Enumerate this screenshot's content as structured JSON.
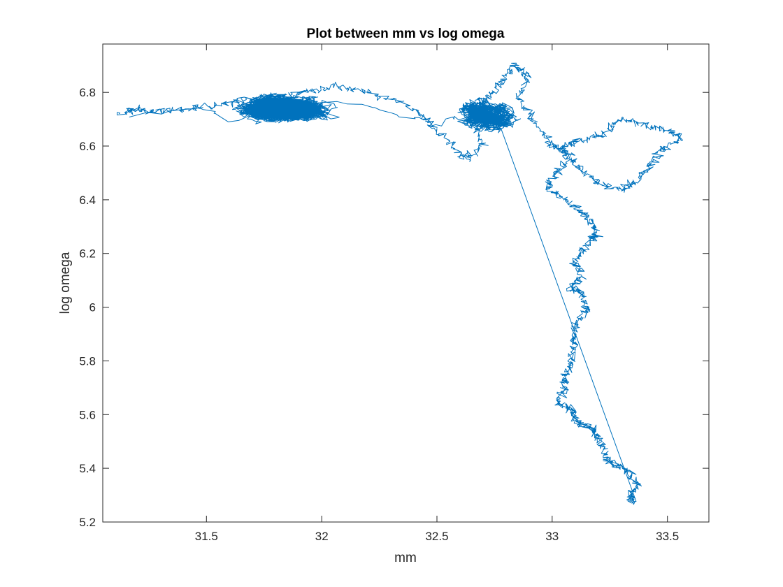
{
  "chart_data": {
    "type": "line",
    "title": "Plot between mm vs log omega",
    "xlabel": "mm",
    "ylabel": "log omega",
    "xlim": [
      31.05,
      33.68
    ],
    "ylim": [
      5.2,
      6.98
    ],
    "xticks": [
      31.5,
      32,
      32.5,
      33,
      33.5
    ],
    "xtick_labels": [
      "31.5",
      "32",
      "32.5",
      "33",
      "33.5"
    ],
    "yticks": [
      5.2,
      5.4,
      5.6,
      5.8,
      6.0,
      6.2,
      6.4,
      6.6,
      6.8
    ],
    "ytick_labels": [
      "5.2",
      "5.4",
      "5.6",
      "5.8",
      "6",
      "6.2",
      "6.4",
      "6.6",
      "6.8"
    ],
    "grid": false,
    "legend": "none",
    "series": [
      {
        "color": "#0072bd",
        "path": [
          [
            33.35,
            5.27
          ],
          [
            33.34,
            5.3
          ],
          [
            33.37,
            5.34
          ],
          [
            33.33,
            5.39
          ],
          [
            33.28,
            5.41
          ],
          [
            33.24,
            5.43
          ],
          [
            33.22,
            5.48
          ],
          [
            33.19,
            5.52
          ],
          [
            33.17,
            5.55
          ],
          [
            33.13,
            5.56
          ],
          [
            33.1,
            5.58
          ],
          [
            33.08,
            5.62
          ],
          [
            33.03,
            5.64
          ],
          [
            33.05,
            5.7
          ],
          [
            33.06,
            5.75
          ],
          [
            33.08,
            5.8
          ],
          [
            33.1,
            5.86
          ],
          [
            33.09,
            5.9
          ],
          [
            33.12,
            5.96
          ],
          [
            33.15,
            6.0
          ],
          [
            33.13,
            6.05
          ],
          [
            33.09,
            6.07
          ],
          [
            33.13,
            6.12
          ],
          [
            33.1,
            6.17
          ],
          [
            33.13,
            6.21
          ],
          [
            33.19,
            6.26
          ],
          [
            33.18,
            6.3
          ],
          [
            33.14,
            6.35
          ],
          [
            33.06,
            6.4
          ],
          [
            32.98,
            6.44
          ],
          [
            33.02,
            6.5
          ],
          [
            33.07,
            6.55
          ],
          [
            33.04,
            6.6
          ],
          [
            33.12,
            6.62
          ],
          [
            33.22,
            6.64
          ],
          [
            33.3,
            6.7
          ],
          [
            33.4,
            6.68
          ],
          [
            33.5,
            6.66
          ],
          [
            33.56,
            6.63
          ],
          [
            33.48,
            6.59
          ],
          [
            33.43,
            6.53
          ],
          [
            33.37,
            6.47
          ],
          [
            33.3,
            6.44
          ],
          [
            33.2,
            6.46
          ],
          [
            33.12,
            6.52
          ],
          [
            33.05,
            6.58
          ],
          [
            32.98,
            6.62
          ],
          [
            32.92,
            6.7
          ],
          [
            32.85,
            6.78
          ],
          [
            32.9,
            6.86
          ],
          [
            32.83,
            6.9
          ],
          [
            32.78,
            6.84
          ],
          [
            32.72,
            6.78
          ],
          [
            32.66,
            6.7
          ],
          [
            32.7,
            6.6
          ],
          [
            32.63,
            6.55
          ],
          [
            32.55,
            6.62
          ],
          [
            32.45,
            6.7
          ],
          [
            32.35,
            6.76
          ],
          [
            32.2,
            6.8
          ],
          [
            32.05,
            6.82
          ],
          [
            31.9,
            6.8
          ],
          [
            31.75,
            6.78
          ],
          [
            31.6,
            6.76
          ],
          [
            31.45,
            6.74
          ],
          [
            31.3,
            6.73
          ],
          [
            31.2,
            6.74
          ],
          [
            31.12,
            6.72
          ]
        ]
      }
    ]
  }
}
